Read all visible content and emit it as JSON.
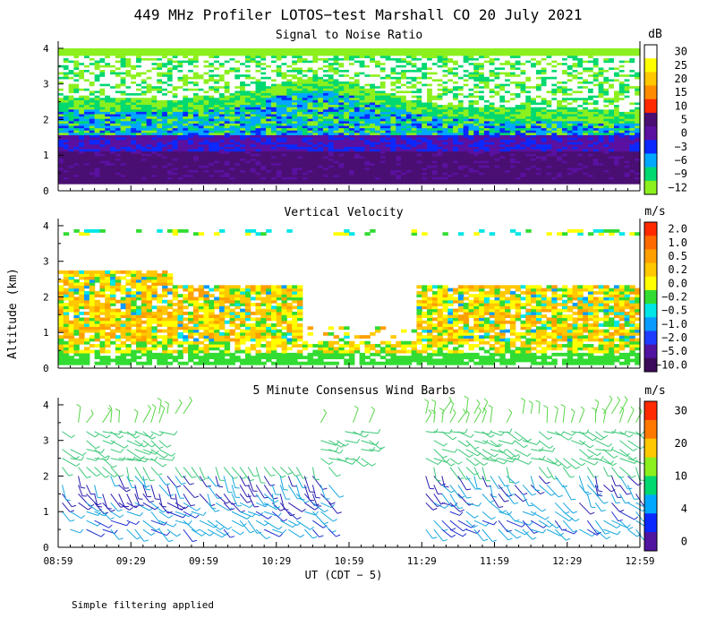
{
  "chart_data": {
    "title": "449 MHz Profiler LOTOS−test Marshall CO 20 July 2021",
    "footnote": "Simple filtering applied",
    "xlabel": "UT  (CDT − 5)",
    "ylabel": "Altitude (km)",
    "x_ticks": [
      "08:59",
      "09:29",
      "09:59",
      "10:29",
      "10:59",
      "11:29",
      "11:59",
      "12:29",
      "12:59"
    ],
    "x_range_minutes": [
      0,
      240
    ],
    "y_ticks": [
      "0",
      "1",
      "2",
      "3",
      "4"
    ],
    "y_range_km": [
      0,
      4.2
    ],
    "panels": [
      {
        "type": "heatmap",
        "title": "Signal to Noise Ratio",
        "colorbar_unit": "dB",
        "colorbar_labels": [
          "30",
          "25",
          "20",
          "15",
          "10",
          "5",
          "0",
          "−3",
          "−6",
          "−9",
          "−12"
        ],
        "colorbar_colors": [
          "#ffffff",
          "#ffff00",
          "#ffc800",
          "#ff8c00",
          "#ff2a00",
          "#4a0f72",
          "#5a10a0",
          "#0a28ff",
          "#00a8ff",
          "#00d870",
          "#8cf01e"
        ]
      },
      {
        "type": "heatmap",
        "title": "Vertical Velocity",
        "colorbar_unit": "m/s",
        "colorbar_labels": [
          "2.0",
          "1.0",
          "0.5",
          "0.2",
          "0.0",
          "−0.2",
          "−0.5",
          "−1.0",
          "−2.0",
          "−5.0",
          "−10.0"
        ],
        "colorbar_colors": [
          "#ff2a00",
          "#ff6a00",
          "#ffa000",
          "#ffc800",
          "#ffff00",
          "#32dc32",
          "#00e6e6",
          "#0a9bff",
          "#1e3cff",
          "#5014a0",
          "#3c0a5a"
        ]
      },
      {
        "type": "wind_barbs",
        "title": "5 Minute Consensus Wind Barbs",
        "colorbar_unit": "m/s",
        "colorbar_labels": [
          "30",
          "20",
          "10",
          "4",
          "0"
        ],
        "colorbar_colors": [
          "#ff2a00",
          "#ff7800",
          "#ffc800",
          "#8cf01e",
          "#00d870",
          "#00a8ff",
          "#0a28ff",
          "#5014a0"
        ]
      }
    ]
  }
}
